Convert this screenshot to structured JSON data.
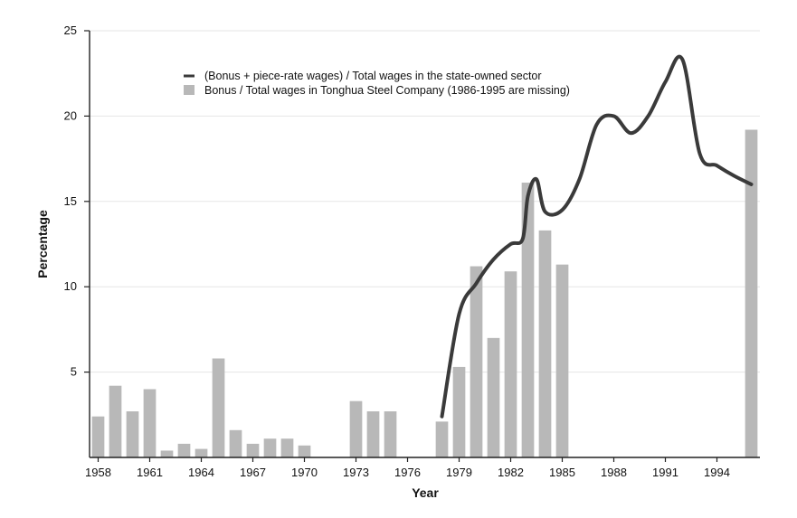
{
  "chart_data": {
    "type": "bar",
    "title": "",
    "xlabel": "Year",
    "ylabel": "Percentage",
    "xlim": [
      1957.5,
      1996.5
    ],
    "ylim": [
      0,
      25
    ],
    "yticks": [
      5,
      10,
      15,
      20,
      25
    ],
    "xticks": [
      1958,
      1961,
      1964,
      1967,
      1970,
      1973,
      1976,
      1979,
      1982,
      1985,
      1988,
      1991,
      1994
    ],
    "grid": "horizontal",
    "legend_position": "top-left",
    "colors": {
      "bar": "#b8b8b8",
      "line": "#3a3a3a",
      "axis": "#222222",
      "grid": "#e6e6e6"
    },
    "series": [
      {
        "name": "(Bonus + piece-rate wages) / Total wages in the state-owned sector",
        "type": "line",
        "x": [
          1978,
          1979,
          1980,
          1981,
          1982,
          1982.7,
          1983,
          1983.5,
          1984,
          1985,
          1986,
          1987,
          1988,
          1989,
          1990,
          1991,
          1992,
          1993,
          1994,
          1995,
          1996
        ],
        "values": [
          2.4,
          8.4,
          10.2,
          11.6,
          12.5,
          12.8,
          15.3,
          16.3,
          14.4,
          14.5,
          16.3,
          19.5,
          20.0,
          19.0,
          20.0,
          22.0,
          23.3,
          17.8,
          17.1,
          16.5,
          16.0
        ]
      },
      {
        "name": "Bonus / Total wages in Tonghua Steel Company (1986-1995 are missing)",
        "type": "bar",
        "x": [
          1958,
          1959,
          1960,
          1961,
          1962,
          1963,
          1964,
          1965,
          1966,
          1967,
          1968,
          1969,
          1970,
          1973,
          1974,
          1975,
          1978,
          1979,
          1980,
          1981,
          1982,
          1983,
          1984,
          1985,
          1996
        ],
        "values": [
          2.4,
          4.2,
          2.7,
          4.0,
          0.4,
          0.8,
          0.5,
          5.8,
          1.6,
          0.8,
          1.1,
          1.1,
          0.7,
          3.3,
          2.7,
          2.7,
          2.1,
          5.3,
          11.2,
          7.0,
          10.9,
          16.1,
          13.3,
          11.3,
          19.2
        ]
      }
    ]
  }
}
